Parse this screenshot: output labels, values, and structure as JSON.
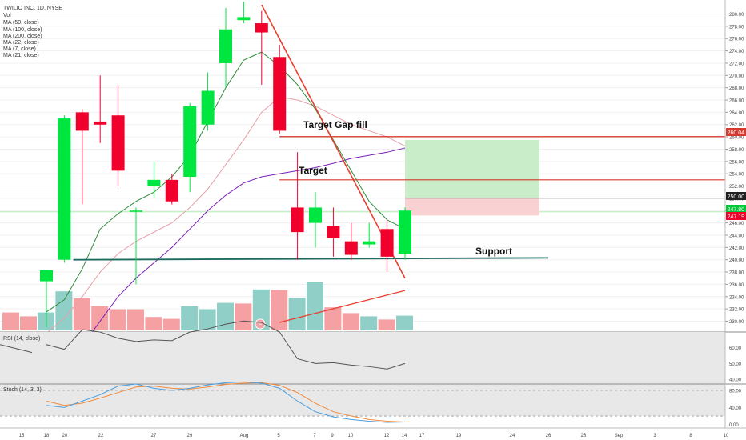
{
  "header": {
    "title": "TWILIO INC, 1D, NYSE",
    "indicators": [
      "Vol",
      "MA (50, close)",
      "MA (100, close)",
      "MA (200, close)",
      "MA (22, close)",
      "MA (7, close)",
      "MA (21, close)"
    ]
  },
  "annotations": {
    "target_gap_fill": "Target  Gap fill",
    "target": "Target",
    "support": "Support",
    "event_badge": "E"
  },
  "price_tags": {
    "top": "260.04",
    "mid": "250.00",
    "green": "247.80",
    "red": "247.19"
  },
  "rsi_label": "RSI (14, close)",
  "stoch_label": "Stoch (14, 3, 3)",
  "colors": {
    "up": "#00e640",
    "down": "#f0002a",
    "vol_up": "#8fcfc8",
    "vol_down": "#f5a0a3",
    "ma_green": "#2e8b3b",
    "ma_pink": "#e8a0a8",
    "ma_purple": "#7a1fb5",
    "trend_red": "#e84030",
    "support": "#1d6b5f",
    "level_red": "#d63a2f"
  },
  "chart_data": [
    {
      "type": "candlestick",
      "title": "TWILIO INC, 1D, NYSE",
      "ylim": [
        228.5,
        281.5
      ],
      "y_ticks": [
        "280.00",
        "278.00",
        "276.00",
        "274.00",
        "272.00",
        "270.00",
        "268.00",
        "266.00",
        "264.00",
        "262.00",
        "260.00",
        "258.00",
        "256.00",
        "254.00",
        "252.00",
        "250.00",
        "248.00",
        "246.00",
        "244.00",
        "242.00",
        "240.00",
        "238.00",
        "236.00",
        "234.00",
        "232.00",
        "230.00"
      ],
      "x_ticks": [
        "15",
        "18",
        "20",
        "22",
        "27",
        "29",
        "Aug",
        "5",
        "7",
        "9",
        "10",
        "12",
        "14",
        "17",
        "19",
        "24",
        "26",
        "28",
        "Sep",
        "3",
        "8",
        "10"
      ],
      "candles": [
        {
          "o": 236.5,
          "h": 238.2,
          "l": 229.0,
          "c": 238.3
        },
        {
          "o": 240.0,
          "h": 263.5,
          "l": 239.5,
          "c": 263.0
        },
        {
          "o": 264.0,
          "h": 264.5,
          "l": 249.0,
          "c": 261.0
        },
        {
          "o": 262.5,
          "h": 270.0,
          "l": 259.0,
          "c": 262.0
        },
        {
          "o": 263.5,
          "h": 268.5,
          "l": 252.0,
          "c": 254.5
        },
        {
          "o": 248.0,
          "h": 248.5,
          "l": 236.0,
          "c": 248.0
        },
        {
          "o": 252.0,
          "h": 256.0,
          "l": 250.0,
          "c": 253.0
        },
        {
          "o": 253.0,
          "h": 254.0,
          "l": 249.0,
          "c": 249.5
        },
        {
          "o": 253.5,
          "h": 265.5,
          "l": 251.0,
          "c": 265.0
        },
        {
          "o": 262.0,
          "h": 270.5,
          "l": 261.0,
          "c": 267.5
        },
        {
          "o": 272.0,
          "h": 281.0,
          "l": 268.0,
          "c": 277.5
        },
        {
          "o": 279.0,
          "h": 282.0,
          "l": 278.5,
          "c": 279.5
        },
        {
          "o": 278.5,
          "h": 280.5,
          "l": 268.5,
          "c": 277.0
        },
        {
          "o": 273.0,
          "h": 275.0,
          "l": 260.5,
          "c": 261.0
        },
        {
          "o": 248.5,
          "h": 257.5,
          "l": 240.0,
          "c": 244.5
        },
        {
          "o": 246.0,
          "h": 251.0,
          "l": 242.0,
          "c": 248.5
        },
        {
          "o": 245.5,
          "h": 248.5,
          "l": 240.5,
          "c": 243.5
        },
        {
          "o": 243.0,
          "h": 246.0,
          "l": 240.0,
          "c": 240.8
        },
        {
          "o": 242.5,
          "h": 246.0,
          "l": 242.0,
          "c": 243.0
        },
        {
          "o": 245.0,
          "h": 246.5,
          "l": 238.0,
          "c": 240.5
        },
        {
          "o": 241.0,
          "h": 248.5,
          "l": 240.0,
          "c": 248.0
        }
      ],
      "volume_up": [
        true,
        true,
        false,
        false,
        false,
        false,
        false,
        false,
        true,
        true,
        true,
        false,
        true,
        false,
        true,
        true,
        false,
        false,
        true,
        false,
        true
      ],
      "volume": [
        0.28,
        0.61,
        0.5,
        0.38,
        0.33,
        0.33,
        0.21,
        0.18,
        0.38,
        0.33,
        0.43,
        0.42,
        0.64,
        0.63,
        0.51,
        0.75,
        0.36,
        0.27,
        0.22,
        0.17,
        0.23
      ],
      "ma_short": [
        231.5,
        233.5,
        238.5,
        245.0,
        247.5,
        249.5,
        251.0,
        253.5,
        257.0,
        262.5,
        268.0,
        272.5,
        273.8,
        271.5,
        268.5,
        264.5,
        259.5,
        254.5,
        249.5,
        246.5,
        245.0
      ],
      "ma_mid": [
        228.0,
        230.5,
        234.0,
        238.0,
        241.0,
        243.0,
        244.5,
        246.0,
        248.5,
        251.5,
        255.5,
        259.5,
        264.0,
        266.5,
        266.0,
        265.0,
        263.5,
        262.0,
        261.0,
        260.0,
        258.5
      ],
      "ma_long": [
        218.0,
        222.0,
        226.0,
        230.0,
        234.0,
        237.0,
        239.5,
        242.0,
        245.0,
        248.0,
        250.5,
        252.5,
        253.5,
        254.0,
        254.5,
        255.0,
        255.7,
        256.5,
        257.0,
        257.5,
        258.2
      ],
      "trend_down": {
        "x": [
          12.0,
          20.0
        ],
        "y": [
          281.5,
          237.0
        ]
      },
      "trend_up": {
        "x": [
          13.0,
          20.0
        ],
        "y": [
          229.8,
          235.0
        ]
      },
      "gap_fill_level": {
        "x": [
          13.0,
          33.0
        ],
        "y": 260.04
      },
      "target_level": {
        "x": [
          13.0,
          33.0
        ],
        "y": 253.0
      },
      "support_level": {
        "x": [
          1.5,
          28.0
        ],
        "y": [
          240.0,
          240.3
        ]
      },
      "zone_green": {
        "x": [
          20.0,
          27.5
        ],
        "y": [
          250.0,
          259.5
        ]
      },
      "zone_red": {
        "x": [
          20.0,
          27.5
        ],
        "y": [
          247.2,
          250.0
        ]
      }
    },
    {
      "type": "line",
      "title": "RSI (14, close)",
      "ylim": [
        38,
        70
      ],
      "y_ticks": [
        "60.00",
        "50.00",
        "40.00"
      ],
      "values": [
        62.0,
        59.0,
        71.5,
        70.0,
        66.0,
        64.0,
        65.0,
        64.5,
        70.0,
        72.0,
        75.0,
        77.0,
        76.0,
        70.0,
        53.0,
        50.0,
        50.5,
        49.0,
        48.0,
        46.5,
        50.0
      ]
    },
    {
      "type": "line",
      "title": "Stoch (14, 3, 3)",
      "ylim": [
        -8,
        95
      ],
      "y_ticks": [
        "80.00",
        "40.00",
        "0.00"
      ],
      "k": [
        45.0,
        40.0,
        55.0,
        70.0,
        90.0,
        95.0,
        85.0,
        80.0,
        85.0,
        93.0,
        98.0,
        100.0,
        97.0,
        85.0,
        55.0,
        30.0,
        18.0,
        12.0,
        8.0,
        5.0,
        6.0
      ],
      "d": [
        55.0,
        45.0,
        50.0,
        62.0,
        75.0,
        88.0,
        90.0,
        85.0,
        83.0,
        88.0,
        94.0,
        97.0,
        98.0,
        92.0,
        75.0,
        50.0,
        30.0,
        20.0,
        12.0,
        8.0,
        6.0
      ]
    }
  ]
}
